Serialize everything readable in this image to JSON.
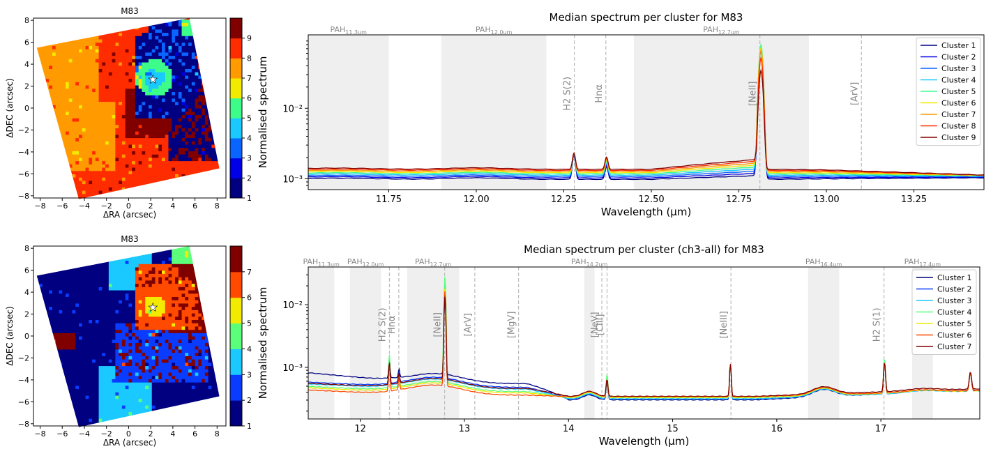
{
  "colormap9": [
    "#000080",
    "#0000e6",
    "#0a64ff",
    "#1ac9ff",
    "#3dfc8a",
    "#a8ff3b",
    "#f2ea00",
    "#ff9a00",
    "#ff2c00",
    "#800000"
  ],
  "chart_data": [
    {
      "type": "heatmap",
      "title": "M83",
      "xlabel": "ΔRA (arcsec)",
      "ylabel": "ΔDEC (arcsec)",
      "xticks": [
        "−8",
        "−6",
        "−4",
        "−2",
        "0",
        "2",
        "4",
        "6",
        "8"
      ],
      "yticks": [
        "8",
        "6",
        "4",
        "2",
        "0",
        "−2",
        "−4",
        "−6",
        "−8"
      ],
      "colorbar_ticks": [
        "9",
        "8",
        "7",
        "6",
        "5",
        "4",
        "3",
        "2",
        "1"
      ],
      "colorbar_range": [
        1,
        10
      ],
      "star_marker": [
        2.2,
        2.6
      ]
    },
    {
      "type": "line",
      "title": "Median spectrum per cluster for M83",
      "xlabel": "Wavelength (μm)",
      "ylabel": "Normalised spectrum",
      "xlim": [
        11.52,
        13.45
      ],
      "ylim_log": [
        0.0007,
        0.11
      ],
      "xticks": [
        "11.75",
        "12.00",
        "12.25",
        "12.50",
        "12.75",
        "13.00",
        "13.25"
      ],
      "xtick_values": [
        11.75,
        12.0,
        12.25,
        12.5,
        12.75,
        13.0,
        13.25
      ],
      "yticks": [
        "10⁻³",
        "10⁻²"
      ],
      "pah_bands": [
        {
          "label": "PAH",
          "sub": "11.3um",
          "range": [
            11.52,
            11.75
          ]
        },
        {
          "label": "PAH",
          "sub": "12.0um",
          "range": [
            11.9,
            12.2
          ]
        },
        {
          "label": "PAH",
          "sub": "12.7um",
          "range": [
            12.45,
            12.95
          ]
        }
      ],
      "lines": [
        {
          "label": "H2 S(2)",
          "x": 12.28
        },
        {
          "label": "Hnα",
          "x": 12.37
        },
        {
          "label": "[NeII]",
          "x": 12.81
        },
        {
          "label": "[ArV]",
          "x": 13.1
        }
      ],
      "series": [
        {
          "name": "Cluster 1"
        },
        {
          "name": "Cluster 2"
        },
        {
          "name": "Cluster 3"
        },
        {
          "name": "Cluster 4"
        },
        {
          "name": "Cluster 5"
        },
        {
          "name": "Cluster 6"
        },
        {
          "name": "Cluster 7"
        },
        {
          "name": "Cluster 8"
        },
        {
          "name": "Cluster 9"
        }
      ],
      "legend_loc": "top-right"
    },
    {
      "type": "heatmap",
      "title": "M83",
      "xlabel": "ΔRA (arcsec)",
      "ylabel": "ΔDEC (arcsec)",
      "xticks": [
        "−8",
        "−6",
        "−4",
        "−2",
        "0",
        "2",
        "4",
        "6",
        "8"
      ],
      "yticks": [
        "8",
        "6",
        "4",
        "2",
        "0",
        "−2",
        "−4",
        "−6",
        "−8"
      ],
      "colorbar_ticks": [
        "7",
        "6",
        "5",
        "4",
        "3",
        "2",
        "1"
      ],
      "colorbar_range": [
        1,
        8
      ],
      "star_marker": [
        2.2,
        2.6
      ]
    },
    {
      "type": "line",
      "title": "Median spectrum per cluster (ch3-all) for M83",
      "xlabel": "Wavelength (μm)",
      "ylabel": "Normalised spectrum",
      "xlim": [
        11.5,
        17.95
      ],
      "ylim_log": [
        0.00015,
        0.04
      ],
      "xticks": [
        "12",
        "13",
        "14",
        "15",
        "16",
        "17"
      ],
      "xtick_values": [
        12,
        13,
        14,
        15,
        16,
        17
      ],
      "yticks": [
        "10⁻³",
        "10⁻²"
      ],
      "pah_bands": [
        {
          "label": "PAH",
          "sub": "11.3um",
          "range": [
            11.5,
            11.75
          ]
        },
        {
          "label": "PAH",
          "sub": "12.0um",
          "range": [
            11.9,
            12.2
          ]
        },
        {
          "label": "PAH",
          "sub": "12.7um",
          "range": [
            12.45,
            12.95
          ]
        },
        {
          "label": "PAH",
          "sub": "14.2um",
          "range": [
            14.15,
            14.25
          ]
        },
        {
          "label": "PAH",
          "sub": "16.4um",
          "range": [
            16.3,
            16.6
          ]
        },
        {
          "label": "PAH",
          "sub": "17.4um",
          "range": [
            17.3,
            17.5
          ]
        }
      ],
      "lines": [
        {
          "label": "H2 S(2)",
          "x": 12.28
        },
        {
          "label": "Hnα",
          "x": 12.37
        },
        {
          "label": "[NeII]",
          "x": 12.81
        },
        {
          "label": "[ArV]",
          "x": 13.1
        },
        {
          "label": "[MgV]",
          "x": 13.52
        },
        {
          "label": "[NeV]",
          "x": 14.32
        },
        {
          "label": "[ClII]",
          "x": 14.37
        },
        {
          "label": "[NeIII]",
          "x": 15.56
        },
        {
          "label": "H2 S(1)",
          "x": 17.03
        }
      ],
      "series": [
        {
          "name": "Cluster 1"
        },
        {
          "name": "Cluster 2"
        },
        {
          "name": "Cluster 3"
        },
        {
          "name": "Cluster 4"
        },
        {
          "name": "Cluster 5"
        },
        {
          "name": "Cluster 6"
        },
        {
          "name": "Cluster 7"
        }
      ],
      "legend_loc": "top-right"
    }
  ]
}
